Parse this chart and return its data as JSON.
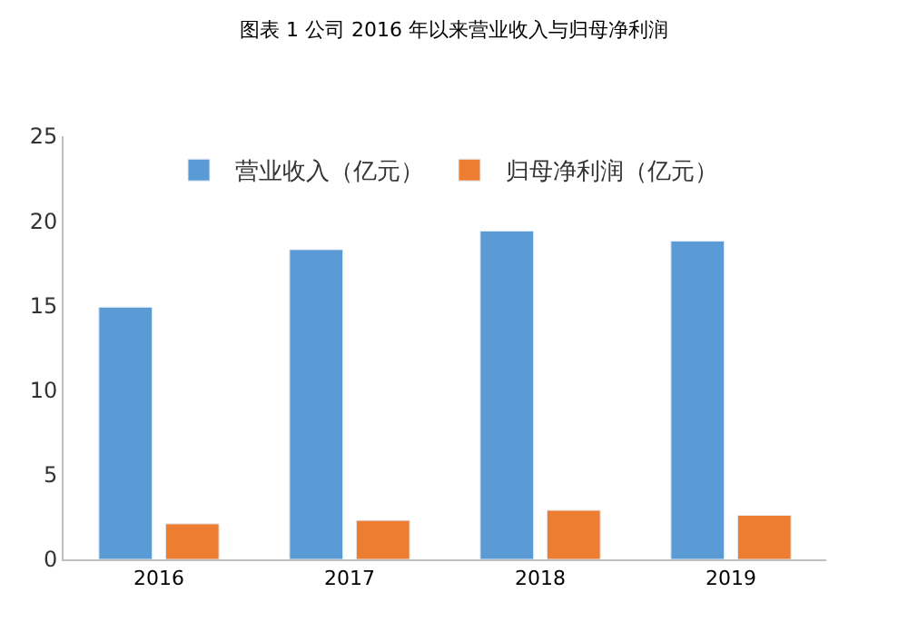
{
  "chart_data": {
    "type": "bar",
    "title": "图表 1 公司 2016 年以来营业收入与归母净利润",
    "categories": [
      "2016",
      "2017",
      "2018",
      "2019"
    ],
    "series": [
      {
        "name": "营业收入（亿元）",
        "color": "#5b9bd5",
        "values": [
          14.9,
          18.3,
          19.4,
          18.8
        ]
      },
      {
        "name": "归母净利润（亿元）",
        "color": "#ed7d31",
        "values": [
          2.1,
          2.3,
          2.9,
          2.6
        ]
      }
    ],
    "ylim": [
      0,
      25
    ],
    "yticks": [
      0,
      5,
      10,
      15,
      20,
      25
    ],
    "legend": "top"
  }
}
